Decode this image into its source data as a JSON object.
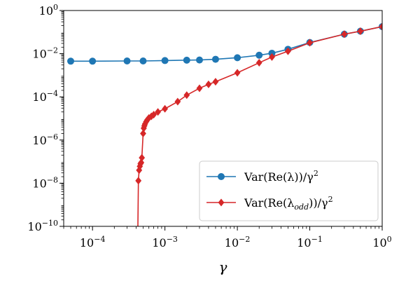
{
  "chart_data": {
    "type": "line",
    "xlabel": "γ",
    "ylabel": "",
    "xscale": "log",
    "yscale": "log",
    "xlim": [
      4e-05,
      1.0
    ],
    "ylim": [
      1e-10,
      1.0
    ],
    "grid": false,
    "legend_position": "lower-right",
    "x_ticks": [
      {
        "base": "10",
        "exp": "−4",
        "value": 0.0001
      },
      {
        "base": "10",
        "exp": "−3",
        "value": 0.001
      },
      {
        "base": "10",
        "exp": "−2",
        "value": 0.01
      },
      {
        "base": "10",
        "exp": "−1",
        "value": 0.1
      },
      {
        "base": "10",
        "exp": "0",
        "value": 1
      }
    ],
    "y_ticks": [
      {
        "base": "10",
        "exp": "−10",
        "value": 1e-10
      },
      {
        "base": "10",
        "exp": "−8",
        "value": 1e-08
      },
      {
        "base": "10",
        "exp": "−6",
        "value": 1e-06
      },
      {
        "base": "10",
        "exp": "−4",
        "value": 0.0001
      },
      {
        "base": "10",
        "exp": "−2",
        "value": 0.01
      },
      {
        "base": "10",
        "exp": "0",
        "value": 1
      }
    ],
    "series": [
      {
        "name": "Var(Re(λ))/γ²",
        "legend_main": "Var(Re(λ))/γ",
        "legend_sup": "2",
        "color": "#1f77b4",
        "marker": "circle",
        "points": [
          [
            5e-05,
            0.0045
          ],
          [
            0.0001,
            0.0045
          ],
          [
            0.0003,
            0.0046
          ],
          [
            0.0005,
            0.0046
          ],
          [
            0.001,
            0.0048
          ],
          [
            0.002,
            0.005
          ],
          [
            0.003,
            0.0051
          ],
          [
            0.005,
            0.0055
          ],
          [
            0.01,
            0.0065
          ],
          [
            0.02,
            0.0085
          ],
          [
            0.03,
            0.0105
          ],
          [
            0.05,
            0.016
          ],
          [
            0.1,
            0.033
          ],
          [
            0.3,
            0.08
          ],
          [
            0.5,
            0.11
          ],
          [
            1.0,
            0.18
          ]
        ]
      },
      {
        "name": "Var(Re(λ_odd))/γ²",
        "legend_main": "Var(Re(λ",
        "legend_sub": "odd",
        "legend_tail": "))/γ",
        "legend_sup": "2",
        "color": "#d62728",
        "marker": "diamond",
        "points": [
          [
            0.00042,
            1e-11
          ],
          [
            0.00043,
            1.3e-08
          ],
          [
            0.00044,
            4e-08
          ],
          [
            0.00045,
            6e-08
          ],
          [
            0.00046,
            8e-08
          ],
          [
            0.00047,
            9e-08
          ],
          [
            0.00048,
            1.5e-07
          ],
          [
            0.0005,
            2e-06
          ],
          [
            0.00051,
            3.5e-06
          ],
          [
            0.00052,
            4.5e-06
          ],
          [
            0.00053,
            5.5e-06
          ],
          [
            0.00055,
            7e-06
          ],
          [
            0.00057,
            8.5e-06
          ],
          [
            0.0006,
            1.05e-05
          ],
          [
            0.00065,
            1.25e-05
          ],
          [
            0.0007,
            1.5e-05
          ],
          [
            0.0008,
            2e-05
          ],
          [
            0.001,
            2.8e-05
          ],
          [
            0.0015,
            6e-05
          ],
          [
            0.002,
            0.00012
          ],
          [
            0.003,
            0.00025
          ],
          [
            0.004,
            0.00038
          ],
          [
            0.005,
            0.0005
          ],
          [
            0.01,
            0.0013
          ],
          [
            0.02,
            0.0038
          ],
          [
            0.03,
            0.007
          ],
          [
            0.05,
            0.013
          ],
          [
            0.1,
            0.032
          ],
          [
            0.3,
            0.08
          ],
          [
            0.5,
            0.11
          ],
          [
            1.0,
            0.18
          ]
        ]
      }
    ]
  }
}
